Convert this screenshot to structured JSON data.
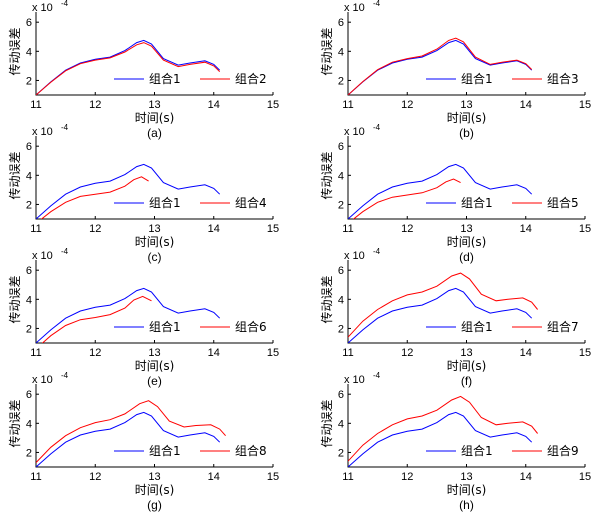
{
  "chart_data": [
    {
      "type": "line",
      "caption": "(a)",
      "xlabel": "时间(s)",
      "ylabel": "传动误差",
      "multiplier": "x 10",
      "exponent": "-4",
      "xlim": [
        11,
        15
      ],
      "ylim": [
        1,
        6.7
      ],
      "xticks": [
        11,
        12,
        13,
        14,
        15
      ],
      "yticks": [
        2,
        4,
        6
      ],
      "legend_position": "bottom-right",
      "series": [
        {
          "name": "组合1",
          "color": "#0000ff",
          "x": [
            11.0,
            11.25,
            11.5,
            11.75,
            12.0,
            12.25,
            12.5,
            12.7,
            12.82,
            12.95,
            13.15,
            13.4,
            13.6,
            13.85,
            14.0,
            14.1
          ],
          "y": [
            1.0,
            1.9,
            2.7,
            3.2,
            3.45,
            3.6,
            4.05,
            4.6,
            4.75,
            4.5,
            3.5,
            3.05,
            3.2,
            3.35,
            3.1,
            2.7
          ]
        },
        {
          "name": "组合2",
          "color": "#ff0000",
          "x": [
            11.0,
            11.25,
            11.5,
            11.75,
            12.0,
            12.25,
            12.5,
            12.7,
            12.82,
            12.95,
            13.15,
            13.4,
            13.6,
            13.85,
            14.0,
            14.1
          ],
          "y": [
            1.0,
            1.88,
            2.66,
            3.15,
            3.4,
            3.55,
            3.95,
            4.45,
            4.6,
            4.35,
            3.4,
            2.95,
            3.1,
            3.25,
            3.0,
            2.6
          ]
        }
      ]
    },
    {
      "type": "line",
      "caption": "(b)",
      "xlabel": "时间(s)",
      "ylabel": "传动误差",
      "multiplier": "x 10",
      "exponent": "-4",
      "xlim": [
        11,
        15
      ],
      "ylim": [
        1,
        6.7
      ],
      "xticks": [
        11,
        12,
        13,
        14,
        15
      ],
      "yticks": [
        2,
        4,
        6
      ],
      "legend_position": "bottom-right",
      "series": [
        {
          "name": "组合1",
          "color": "#0000ff",
          "x": [
            11.0,
            11.25,
            11.5,
            11.75,
            12.0,
            12.25,
            12.5,
            12.7,
            12.82,
            12.95,
            13.15,
            13.4,
            13.6,
            13.85,
            14.0,
            14.1
          ],
          "y": [
            1.0,
            1.9,
            2.7,
            3.2,
            3.45,
            3.6,
            4.05,
            4.6,
            4.75,
            4.5,
            3.5,
            3.05,
            3.2,
            3.35,
            3.1,
            2.7
          ]
        },
        {
          "name": "组合3",
          "color": "#ff0000",
          "x": [
            11.0,
            11.25,
            11.5,
            11.75,
            12.0,
            12.25,
            12.5,
            12.7,
            12.82,
            12.95,
            13.15,
            13.4,
            13.6,
            13.85,
            14.0,
            14.1
          ],
          "y": [
            1.0,
            1.92,
            2.74,
            3.25,
            3.5,
            3.68,
            4.15,
            4.75,
            4.9,
            4.65,
            3.6,
            3.1,
            3.25,
            3.4,
            3.15,
            2.75
          ]
        }
      ]
    },
    {
      "type": "line",
      "caption": "(c)",
      "xlabel": "时间(s)",
      "ylabel": "传动误差",
      "multiplier": "x 10",
      "exponent": "-4",
      "xlim": [
        11,
        15
      ],
      "ylim": [
        1,
        6.7
      ],
      "xticks": [
        11,
        12,
        13,
        14,
        15
      ],
      "yticks": [
        2,
        4,
        6
      ],
      "legend_position": "bottom-right",
      "series": [
        {
          "name": "组合1",
          "color": "#0000ff",
          "x": [
            11.0,
            11.25,
            11.5,
            11.75,
            12.0,
            12.25,
            12.5,
            12.7,
            12.82,
            12.95,
            13.15,
            13.4,
            13.6,
            13.85,
            14.0,
            14.1
          ],
          "y": [
            1.0,
            1.9,
            2.7,
            3.2,
            3.45,
            3.6,
            4.05,
            4.6,
            4.75,
            4.5,
            3.5,
            3.05,
            3.2,
            3.35,
            3.1,
            2.7
          ]
        },
        {
          "name": "组合4",
          "color": "#ff0000",
          "x": [
            11.0,
            11.25,
            11.5,
            11.75,
            12.0,
            12.25,
            12.5,
            12.65,
            12.78,
            12.9
          ],
          "y": [
            0.7,
            1.5,
            2.15,
            2.55,
            2.7,
            2.85,
            3.25,
            3.7,
            3.9,
            3.6
          ]
        }
      ]
    },
    {
      "type": "line",
      "caption": "(d)",
      "xlabel": "时间(s)",
      "ylabel": "传动误差",
      "multiplier": "x 10",
      "exponent": "-4",
      "xlim": [
        11,
        15
      ],
      "ylim": [
        1,
        6.7
      ],
      "xticks": [
        11,
        12,
        13,
        14,
        15
      ],
      "yticks": [
        2,
        4,
        6
      ],
      "legend_position": "bottom-right",
      "series": [
        {
          "name": "组合1",
          "color": "#0000ff",
          "x": [
            11.0,
            11.25,
            11.5,
            11.75,
            12.0,
            12.25,
            12.5,
            12.7,
            12.82,
            12.95,
            13.15,
            13.4,
            13.6,
            13.85,
            14.0,
            14.1
          ],
          "y": [
            1.0,
            1.9,
            2.7,
            3.2,
            3.45,
            3.6,
            4.05,
            4.6,
            4.75,
            4.5,
            3.5,
            3.05,
            3.2,
            3.35,
            3.1,
            2.7
          ]
        },
        {
          "name": "组合5",
          "color": "#ff0000",
          "x": [
            11.0,
            11.25,
            11.5,
            11.75,
            12.0,
            12.25,
            12.5,
            12.65,
            12.78,
            12.9
          ],
          "y": [
            0.7,
            1.5,
            2.15,
            2.5,
            2.65,
            2.8,
            3.15,
            3.55,
            3.75,
            3.5
          ]
        }
      ]
    },
    {
      "type": "line",
      "caption": "(e)",
      "xlabel": "时间(s)",
      "ylabel": "传动误差",
      "multiplier": "x 10",
      "exponent": "-4",
      "xlim": [
        11,
        15
      ],
      "ylim": [
        1,
        6.7
      ],
      "xticks": [
        11,
        12,
        13,
        14,
        15
      ],
      "yticks": [
        2,
        4,
        6
      ],
      "legend_position": "bottom-right",
      "series": [
        {
          "name": "组合1",
          "color": "#0000ff",
          "x": [
            11.0,
            11.25,
            11.5,
            11.75,
            12.0,
            12.25,
            12.5,
            12.7,
            12.82,
            12.95,
            13.15,
            13.4,
            13.6,
            13.85,
            14.0,
            14.1
          ],
          "y": [
            1.0,
            1.9,
            2.7,
            3.2,
            3.45,
            3.6,
            4.05,
            4.6,
            4.75,
            4.5,
            3.5,
            3.05,
            3.2,
            3.35,
            3.1,
            2.7
          ]
        },
        {
          "name": "组合6",
          "color": "#ff0000",
          "x": [
            11.0,
            11.25,
            11.5,
            11.75,
            12.0,
            12.25,
            12.5,
            12.65,
            12.8,
            12.95
          ],
          "y": [
            0.6,
            1.5,
            2.2,
            2.6,
            2.75,
            2.95,
            3.4,
            3.95,
            4.2,
            3.9
          ]
        }
      ]
    },
    {
      "type": "line",
      "caption": "(f)",
      "xlabel": "时间(s)",
      "ylabel": "传动误差",
      "multiplier": "x 10",
      "exponent": "-4",
      "xlim": [
        11,
        15
      ],
      "ylim": [
        1,
        6.7
      ],
      "xticks": [
        11,
        12,
        13,
        14,
        15
      ],
      "yticks": [
        2,
        4,
        6
      ],
      "legend_position": "bottom-right",
      "series": [
        {
          "name": "组合1",
          "color": "#0000ff",
          "x": [
            11.0,
            11.25,
            11.5,
            11.75,
            12.0,
            12.25,
            12.5,
            12.7,
            12.82,
            12.95,
            13.15,
            13.4,
            13.6,
            13.85,
            14.0,
            14.1
          ],
          "y": [
            1.0,
            1.9,
            2.7,
            3.2,
            3.45,
            3.6,
            4.05,
            4.6,
            4.75,
            4.5,
            3.5,
            3.05,
            3.2,
            3.35,
            3.1,
            2.7
          ]
        },
        {
          "name": "组合7",
          "color": "#ff0000",
          "x": [
            11.0,
            11.25,
            11.5,
            11.75,
            12.0,
            12.25,
            12.5,
            12.75,
            12.9,
            13.05,
            13.25,
            13.5,
            13.7,
            13.95,
            14.1,
            14.2
          ],
          "y": [
            1.4,
            2.5,
            3.3,
            3.9,
            4.3,
            4.5,
            4.9,
            5.6,
            5.8,
            5.4,
            4.35,
            3.9,
            4.0,
            4.1,
            3.8,
            3.3
          ]
        }
      ]
    },
    {
      "type": "line",
      "caption": "(g)",
      "xlabel": "时间(s)",
      "ylabel": "传动误差",
      "multiplier": "x 10",
      "exponent": "-4",
      "xlim": [
        11,
        15
      ],
      "ylim": [
        1,
        6.7
      ],
      "xticks": [
        11,
        12,
        13,
        14,
        15
      ],
      "yticks": [
        2,
        4,
        6
      ],
      "legend_position": "bottom-right",
      "series": [
        {
          "name": "组合1",
          "color": "#0000ff",
          "x": [
            11.0,
            11.25,
            11.5,
            11.75,
            12.0,
            12.25,
            12.5,
            12.7,
            12.82,
            12.95,
            13.15,
            13.4,
            13.6,
            13.85,
            14.0,
            14.1
          ],
          "y": [
            1.0,
            1.9,
            2.7,
            3.2,
            3.45,
            3.6,
            4.05,
            4.6,
            4.75,
            4.5,
            3.5,
            3.05,
            3.2,
            3.35,
            3.1,
            2.7
          ]
        },
        {
          "name": "组合8",
          "color": "#ff0000",
          "x": [
            11.0,
            11.25,
            11.5,
            11.75,
            12.0,
            12.25,
            12.5,
            12.75,
            12.9,
            13.05,
            13.25,
            13.5,
            13.7,
            13.95,
            14.1,
            14.2
          ],
          "y": [
            1.3,
            2.35,
            3.15,
            3.7,
            4.05,
            4.25,
            4.65,
            5.35,
            5.55,
            5.15,
            4.15,
            3.75,
            3.85,
            3.9,
            3.6,
            3.15
          ]
        }
      ]
    },
    {
      "type": "line",
      "caption": "(h)",
      "xlabel": "时间(s)",
      "ylabel": "传动误差",
      "multiplier": "x 10",
      "exponent": "-4",
      "xlim": [
        11,
        15
      ],
      "ylim": [
        1,
        6.7
      ],
      "xticks": [
        11,
        12,
        13,
        14,
        15
      ],
      "yticks": [
        2,
        4,
        6
      ],
      "legend_position": "bottom-right",
      "series": [
        {
          "name": "组合1",
          "color": "#0000ff",
          "x": [
            11.0,
            11.25,
            11.5,
            11.75,
            12.0,
            12.25,
            12.5,
            12.7,
            12.82,
            12.95,
            13.15,
            13.4,
            13.6,
            13.85,
            14.0,
            14.1
          ],
          "y": [
            1.0,
            1.9,
            2.7,
            3.2,
            3.45,
            3.6,
            4.05,
            4.6,
            4.75,
            4.5,
            3.5,
            3.05,
            3.2,
            3.35,
            3.1,
            2.7
          ]
        },
        {
          "name": "组合9",
          "color": "#ff0000",
          "x": [
            11.0,
            11.25,
            11.5,
            11.75,
            12.0,
            12.25,
            12.5,
            12.75,
            12.9,
            13.05,
            13.25,
            13.5,
            13.7,
            13.95,
            14.1,
            14.2
          ],
          "y": [
            1.4,
            2.5,
            3.3,
            3.9,
            4.3,
            4.5,
            4.9,
            5.6,
            5.85,
            5.45,
            4.4,
            3.9,
            4.0,
            4.1,
            3.8,
            3.3
          ]
        }
      ]
    }
  ]
}
